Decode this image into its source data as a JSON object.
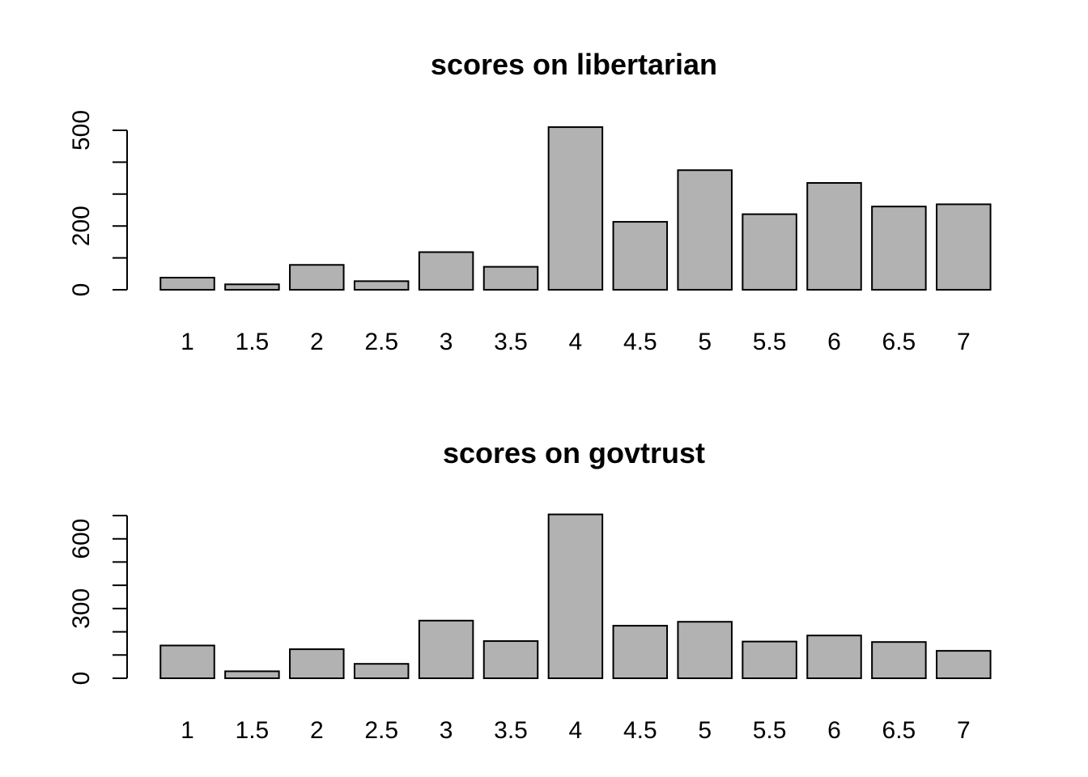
{
  "chart_data": [
    {
      "type": "bar",
      "title": "scores on libertarian",
      "xlabel": "",
      "ylabel": "",
      "categories": [
        "1",
        "1.5",
        "2",
        "2.5",
        "3",
        "3.5",
        "4",
        "4.5",
        "5",
        "5.5",
        "6",
        "6.5",
        "7"
      ],
      "values": [
        38,
        17,
        78,
        27,
        118,
        72,
        510,
        213,
        375,
        237,
        335,
        261,
        268
      ],
      "ylim": [
        0,
        500
      ],
      "yticks": [
        0,
        100,
        200,
        300,
        400,
        500
      ],
      "ytick_labels": [
        "0",
        "",
        "200",
        "",
        "",
        "500"
      ],
      "bar_color": "#b2b2b2"
    },
    {
      "type": "bar",
      "title": "scores on govtrust",
      "xlabel": "",
      "ylabel": "",
      "categories": [
        "1",
        "1.5",
        "2",
        "2.5",
        "3",
        "3.5",
        "4",
        "4.5",
        "5",
        "5.5",
        "6",
        "6.5",
        "7"
      ],
      "values": [
        141,
        30,
        125,
        62,
        248,
        160,
        705,
        226,
        243,
        158,
        184,
        156,
        118
      ],
      "ylim": [
        0,
        700
      ],
      "yticks": [
        0,
        100,
        200,
        300,
        400,
        500,
        600,
        700
      ],
      "ytick_labels": [
        "0",
        "",
        "",
        "300",
        "",
        "",
        "600",
        ""
      ],
      "bar_color": "#b2b2b2"
    }
  ]
}
